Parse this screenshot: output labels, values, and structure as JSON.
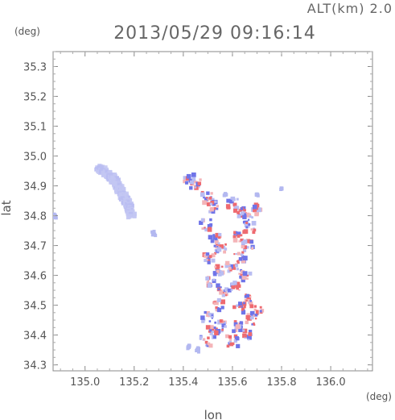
{
  "header": {
    "altitude_label": "ALT(km) 2.0",
    "timestamp": "2013/05/29 09:16:14"
  },
  "chart_data": {
    "type": "scatter",
    "title": "2013/05/29 09:16:14",
    "subtitle": "ALT(km) 2.0",
    "xlabel": "lon",
    "ylabel": "lat",
    "x_unit": "(deg)",
    "y_unit": "(deg)",
    "xlim": [
      134.87,
      136.17
    ],
    "ylim": [
      34.28,
      35.35
    ],
    "xticks": [
      135.0,
      135.2,
      135.4,
      135.6,
      135.8,
      136.0
    ],
    "xtick_labels": [
      "135.0",
      "135.2",
      "135.4",
      "135.6",
      "135.8",
      "136.0"
    ],
    "yticks": [
      34.3,
      34.4,
      34.5,
      34.6,
      34.7,
      34.8,
      34.9,
      35.0,
      35.1,
      35.2,
      35.3
    ],
    "ytick_labels": [
      "34.3",
      "34.4",
      "34.5",
      "34.6",
      "34.7",
      "34.8",
      "34.9",
      "35.0",
      "35.1",
      "35.2",
      "35.3"
    ],
    "grid": false,
    "legend": "none",
    "colors": {
      "positive": "#ee6a70",
      "negative": "#6f74e8",
      "weak_negative": "#b9bdf2",
      "weak_positive": "#f4b4b8"
    },
    "series": [
      {
        "kind": "band",
        "color": "#c3c7f3",
        "points": [
          [
            135.06,
            34.96
          ],
          [
            135.09,
            34.94
          ],
          [
            135.12,
            34.92
          ],
          [
            135.14,
            34.89
          ],
          [
            135.16,
            34.86
          ],
          [
            135.18,
            34.83
          ],
          [
            135.19,
            34.8
          ]
        ],
        "width": 0.022
      },
      {
        "kind": "blob",
        "color": "#b3b8f0",
        "points": [
          [
            134.88,
            34.8
          ],
          [
            135.28,
            34.74
          ],
          [
            135.57,
            34.87
          ],
          [
            135.7,
            34.87
          ],
          [
            135.42,
            34.36
          ],
          [
            135.46,
            34.35
          ],
          [
            135.8,
            34.89
          ]
        ],
        "size": [
          0.012,
          0.011,
          0.006,
          0.006,
          0.008,
          0.009,
          0.004
        ]
      },
      {
        "kind": "cluster",
        "name_key": "west_arm",
        "color_mix": [
          0.5,
          0.5
        ],
        "centers": [
          [
            135.42,
            34.92
          ],
          [
            135.45,
            34.91
          ],
          [
            135.5,
            34.86
          ],
          [
            135.52,
            34.83
          ],
          [
            135.49,
            34.77
          ],
          [
            135.53,
            34.72
          ],
          [
            135.55,
            34.69
          ],
          [
            135.5,
            34.66
          ],
          [
            135.55,
            34.62
          ],
          [
            135.52,
            34.58
          ],
          [
            135.56,
            34.55
          ],
          [
            135.54,
            34.5
          ],
          [
            135.5,
            34.46
          ],
          [
            135.55,
            34.43
          ],
          [
            135.52,
            34.41
          ],
          [
            135.49,
            34.38
          ]
        ]
      },
      {
        "kind": "cluster",
        "name_key": "east_arm",
        "color_mix": [
          0.5,
          0.5
        ],
        "centers": [
          [
            135.6,
            34.84
          ],
          [
            135.63,
            34.81
          ],
          [
            135.66,
            34.79
          ],
          [
            135.7,
            34.82
          ],
          [
            135.67,
            34.76
          ],
          [
            135.63,
            34.73
          ],
          [
            135.66,
            34.7
          ],
          [
            135.63,
            34.66
          ],
          [
            135.6,
            34.63
          ],
          [
            135.65,
            34.6
          ],
          [
            135.61,
            34.56
          ],
          [
            135.66,
            34.52
          ],
          [
            135.63,
            34.49
          ],
          [
            135.7,
            34.48
          ],
          [
            135.68,
            34.45
          ],
          [
            135.62,
            34.43
          ],
          [
            135.66,
            34.4
          ],
          [
            135.6,
            34.38
          ]
        ]
      }
    ]
  }
}
